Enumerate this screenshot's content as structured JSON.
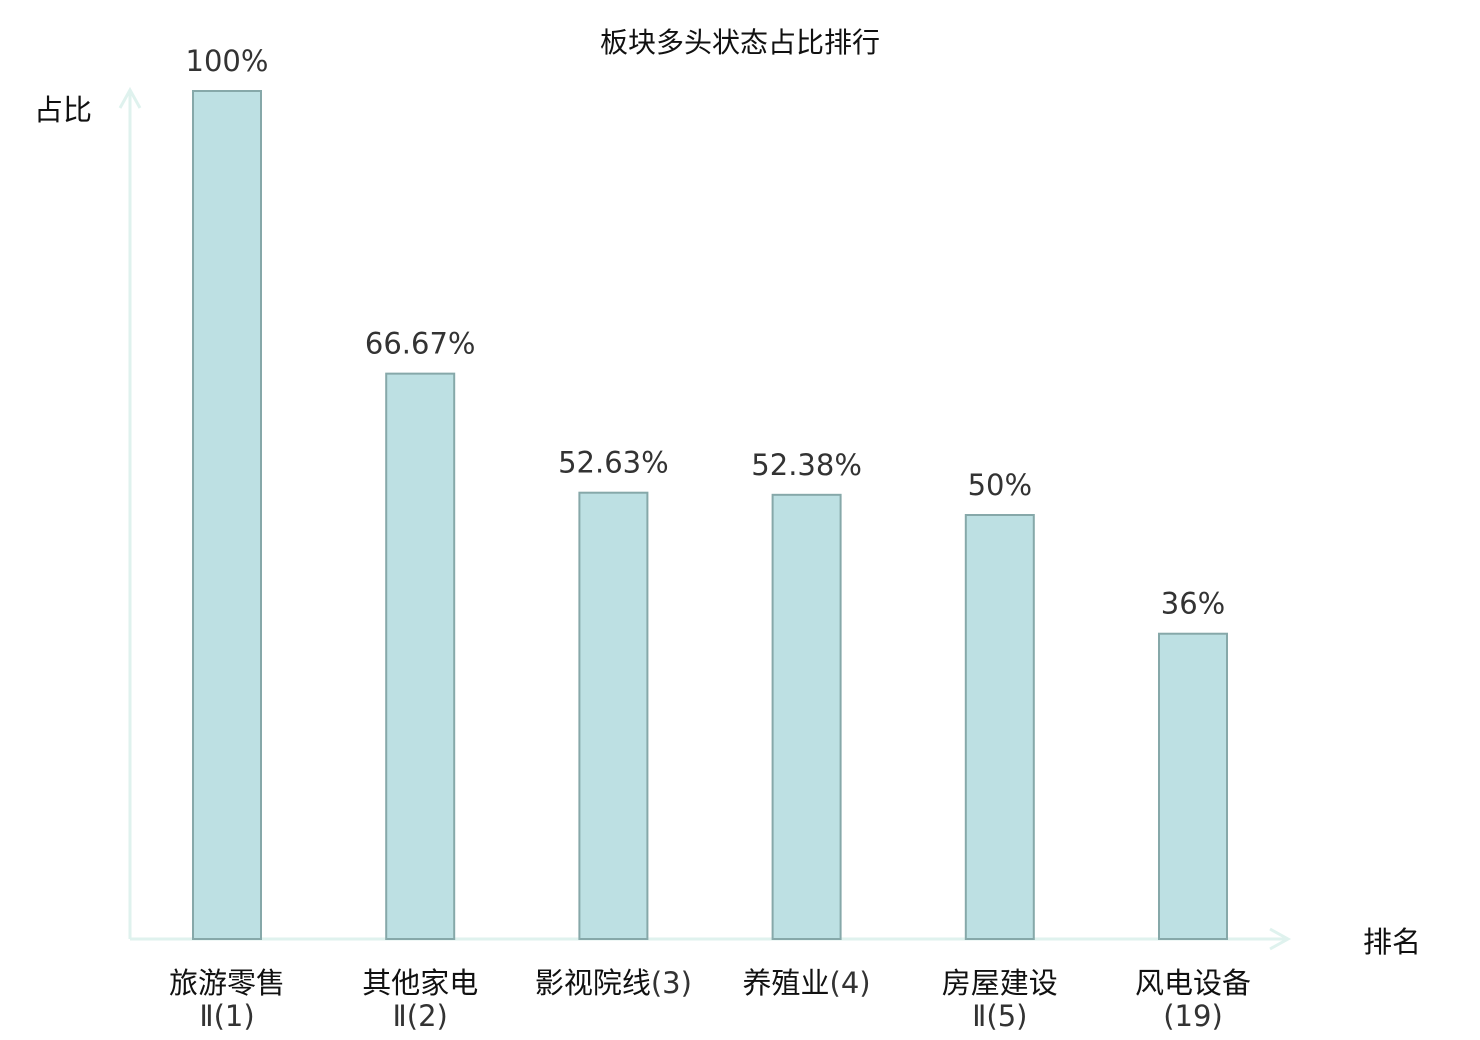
{
  "chart_data": {
    "type": "bar",
    "title": "板块多头状态占比排行",
    "xlabel": "排名",
    "ylabel": "占比",
    "ylim": [
      0,
      100
    ],
    "grid": false,
    "categories": [
      {
        "name": "旅游零售",
        "rank": "Ⅱ(1)",
        "highlight": false
      },
      {
        "name": "其他家电",
        "rank": "Ⅱ(2)",
        "highlight": false
      },
      {
        "name": "影视院线",
        "rank": "(3)",
        "highlight": false
      },
      {
        "name": "养殖业",
        "rank": "(4)",
        "highlight": false
      },
      {
        "name": "房屋建设",
        "rank": "Ⅱ(5)",
        "highlight": false
      },
      {
        "name": "风电设备",
        "rank": "(19)",
        "highlight": true
      }
    ],
    "values": [
      100,
      66.67,
      52.63,
      52.38,
      50,
      36
    ],
    "value_labels": [
      "100%",
      "66.67%",
      "52.63%",
      "52.38%",
      "50%",
      "36%"
    ],
    "colors": {
      "bar": "#bde0e3",
      "bar_edge": "#86a8a9",
      "axis": "#dff2ee",
      "highlight": "#ee1111"
    }
  }
}
